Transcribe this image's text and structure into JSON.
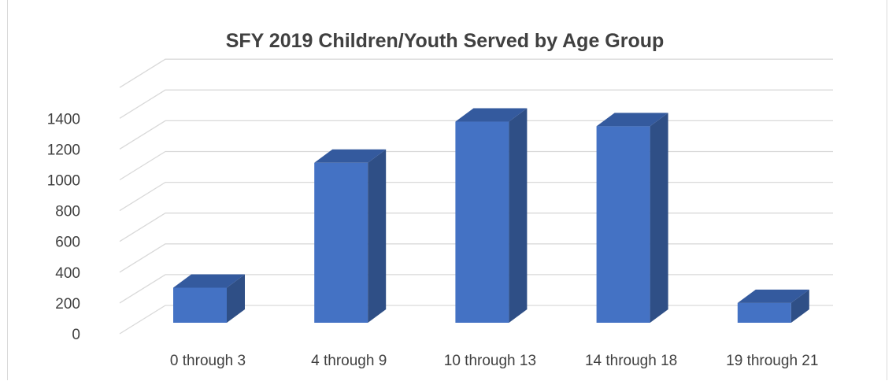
{
  "chart_data": {
    "type": "bar",
    "title": "SFY 2019 Children/Youth Served by Age Group",
    "categories": [
      "0 through 3",
      "4 through 9",
      "10 through 13",
      "14 through 18",
      "19 through 21"
    ],
    "values": [
      230,
      1050,
      1320,
      1290,
      130
    ],
    "ylim": [
      0,
      1400
    ],
    "yticks": [
      0,
      200,
      400,
      600,
      800,
      1000,
      1200,
      1400
    ],
    "grid": true,
    "legend": "none",
    "colors": {
      "bar_front": "#4472c4",
      "bar_side": "#2f4f86",
      "bar_top": "#345a9e",
      "grid": "#d9d9d9",
      "text": "#404040"
    }
  }
}
